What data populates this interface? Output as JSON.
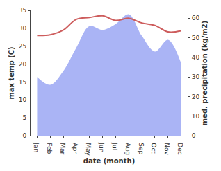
{
  "chart_data": {
    "type": "line",
    "xlabel": "date (month)",
    "ylabel": "max temp (C)",
    "y2label": "med. precipitation (kg/m2)",
    "categories": [
      "Jan",
      "Feb",
      "Mar",
      "Apr",
      "May",
      "Jun",
      "Jul",
      "Aug",
      "Sep",
      "Oct",
      "Nov",
      "Dec"
    ],
    "series": [
      {
        "type": "line",
        "color": "#cd5c5c",
        "values": [
          28,
          28.2,
          29.5,
          32.5,
          33,
          33.5,
          32.2,
          32.8,
          31.5,
          30.8,
          29,
          29.3
        ]
      },
      {
        "type": "area",
        "color": "#aab4f5",
        "axis": "y2",
        "values": [
          30,
          26,
          33,
          45,
          56,
          54,
          57,
          62,
          51,
          43,
          49,
          37
        ]
      }
    ],
    "ylim": [
      0,
      35
    ],
    "yticks": [
      0,
      5,
      10,
      15,
      20,
      25,
      30,
      35
    ],
    "y2lim": [
      0,
      64
    ],
    "y2ticks": [
      0,
      10,
      20,
      30,
      40,
      50,
      60
    ],
    "grid": false
  }
}
